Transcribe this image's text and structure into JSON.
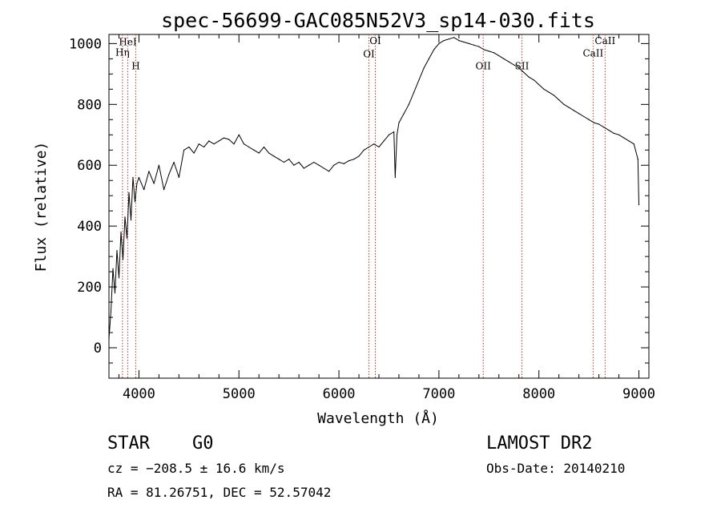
{
  "chart_data": {
    "type": "line",
    "title": "spec-56699-GAC085N52V3_sp14-030.fits",
    "xlabel": "Wavelength (Å)",
    "ylabel": "Flux (relative)",
    "xlim": [
      3700,
      9100
    ],
    "ylim": [
      -100,
      1030
    ],
    "x_ticks": [
      4000,
      5000,
      6000,
      7000,
      8000,
      9000
    ],
    "y_ticks": [
      0,
      200,
      400,
      600,
      800,
      1000
    ],
    "grid": false,
    "series": [
      {
        "line_color": "#000000",
        "x": [
          3700,
          3720,
          3740,
          3760,
          3780,
          3800,
          3820,
          3840,
          3860,
          3880,
          3900,
          3920,
          3940,
          3960,
          3980,
          4000,
          4050,
          4100,
          4150,
          4200,
          4250,
          4300,
          4350,
          4400,
          4450,
          4500,
          4550,
          4600,
          4650,
          4700,
          4750,
          4800,
          4850,
          4900,
          4950,
          5000,
          5050,
          5100,
          5150,
          5200,
          5250,
          5300,
          5350,
          5400,
          5450,
          5500,
          5550,
          5600,
          5650,
          5700,
          5750,
          5800,
          5850,
          5900,
          5950,
          6000,
          6050,
          6100,
          6150,
          6200,
          6250,
          6300,
          6350,
          6400,
          6450,
          6500,
          6550,
          6563,
          6580,
          6600,
          6650,
          6700,
          6750,
          6800,
          6850,
          6900,
          6950,
          7000,
          7050,
          7100,
          7150,
          7200,
          7250,
          7300,
          7350,
          7400,
          7450,
          7500,
          7550,
          7600,
          7650,
          7700,
          7750,
          7800,
          7850,
          7900,
          7950,
          8000,
          8050,
          8100,
          8150,
          8200,
          8250,
          8300,
          8350,
          8400,
          8450,
          8500,
          8550,
          8600,
          8650,
          8700,
          8750,
          8800,
          8850,
          8900,
          8950,
          8990,
          9000
        ],
        "y": [
          30,
          120,
          260,
          180,
          320,
          230,
          380,
          290,
          430,
          360,
          510,
          420,
          560,
          480,
          540,
          560,
          520,
          580,
          540,
          600,
          520,
          570,
          610,
          560,
          650,
          660,
          640,
          670,
          660,
          680,
          670,
          680,
          690,
          685,
          670,
          700,
          670,
          660,
          650,
          640,
          660,
          640,
          630,
          620,
          610,
          620,
          600,
          610,
          590,
          600,
          610,
          600,
          590,
          580,
          600,
          610,
          605,
          615,
          620,
          630,
          650,
          660,
          670,
          660,
          680,
          700,
          710,
          560,
          700,
          740,
          770,
          800,
          840,
          880,
          920,
          950,
          980,
          1000,
          1010,
          1015,
          1020,
          1010,
          1005,
          1000,
          995,
          990,
          980,
          975,
          970,
          960,
          950,
          940,
          930,
          920,
          905,
          890,
          880,
          865,
          850,
          840,
          830,
          815,
          800,
          790,
          780,
          770,
          760,
          750,
          740,
          735,
          725,
          715,
          705,
          700,
          690,
          680,
          670,
          620,
          470
        ]
      }
    ],
    "line_markers": [
      {
        "wavelength": 3835,
        "label": "Hη",
        "label_flux": 960
      },
      {
        "wavelength": 3889,
        "label": "HeI",
        "label_flux": 995
      },
      {
        "wavelength": 3968,
        "label": "H",
        "label_flux": 915
      },
      {
        "wavelength": 6300,
        "label": "OI",
        "label_flux": 955
      },
      {
        "wavelength": 6364,
        "label": "OI",
        "label_flux": 998
      },
      {
        "wavelength": 7443,
        "label": "OII",
        "label_flux": 915
      },
      {
        "wavelength": 7830,
        "label": "SII",
        "label_flux": 915
      },
      {
        "wavelength": 8542,
        "label": "CaII",
        "label_flux": 958
      },
      {
        "wavelength": 8662,
        "label": "CaII",
        "label_flux": 998
      }
    ],
    "marker_color": "#b03a2e"
  },
  "info": {
    "object_class": "STAR",
    "subclass": "G0",
    "survey": "LAMOST DR2",
    "cz": "cz = −208.5 ± 16.6 km/s",
    "obs_date": "Obs-Date: 20140210",
    "coords": "RA =  81.26751, DEC =  52.57042"
  }
}
